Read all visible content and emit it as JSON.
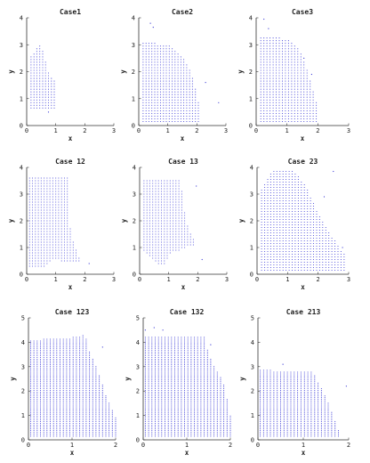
{
  "figure": {
    "background": "#ffffff",
    "point_color": "#3b3bd6",
    "axis_color": "#333333"
  },
  "chart_data": [
    {
      "type": "scatter",
      "title": "Case1",
      "xlabel": "x",
      "ylabel": "y",
      "xlim": [
        0,
        3
      ],
      "ylim": [
        0,
        4
      ],
      "xticks": [
        0,
        1,
        2,
        3
      ],
      "yticks": [
        0,
        1,
        2,
        3,
        4
      ],
      "grid": false,
      "x_range": [
        0.15,
        1.0
      ],
      "y_range": [
        0.65,
        3.0
      ],
      "spacing": 0.1,
      "upper_edge": [
        [
          0.15,
          2.6
        ],
        [
          0.3,
          2.8
        ],
        [
          0.45,
          3.0
        ],
        [
          0.6,
          2.7
        ],
        [
          0.7,
          2.1
        ],
        [
          0.8,
          1.9
        ],
        [
          1.0,
          1.6
        ]
      ],
      "outliers": [
        [
          0.75,
          0.5
        ]
      ]
    },
    {
      "type": "scatter",
      "title": "Case2",
      "xlabel": "x",
      "ylabel": "y",
      "xlim": [
        0,
        3
      ],
      "ylim": [
        0,
        4
      ],
      "xticks": [
        0,
        1,
        2,
        3
      ],
      "yticks": [
        0,
        1,
        2,
        3,
        4
      ],
      "grid": false,
      "x_range": [
        0.15,
        2.1
      ],
      "y_range": [
        0.15,
        3.1
      ],
      "spacing": 0.1,
      "upper_edge": [
        [
          0.15,
          3.1
        ],
        [
          1.0,
          3.0
        ],
        [
          1.5,
          2.6
        ],
        [
          1.8,
          2.0
        ],
        [
          2.0,
          1.2
        ],
        [
          2.1,
          0.5
        ]
      ],
      "outliers": [
        [
          0.4,
          3.8
        ],
        [
          0.5,
          3.65
        ],
        [
          2.3,
          1.6
        ],
        [
          2.75,
          0.85
        ]
      ]
    },
    {
      "type": "scatter",
      "title": "Case3",
      "xlabel": "x",
      "ylabel": "y",
      "xlim": [
        0,
        3
      ],
      "ylim": [
        0,
        4
      ],
      "xticks": [
        0,
        1,
        2,
        3
      ],
      "yticks": [
        0,
        1,
        2,
        3,
        4
      ],
      "grid": false,
      "x_range": [
        0.15,
        2.0
      ],
      "y_range": [
        0.15,
        3.3
      ],
      "spacing": 0.1,
      "upper_edge": [
        [
          0.15,
          3.3
        ],
        [
          0.6,
          3.3
        ],
        [
          1.0,
          3.2
        ],
        [
          1.3,
          3.0
        ],
        [
          1.6,
          2.3
        ],
        [
          1.8,
          1.5
        ],
        [
          2.0,
          0.7
        ]
      ],
      "outliers": [
        [
          0.25,
          3.95
        ],
        [
          0.4,
          3.6
        ],
        [
          1.55,
          2.5
        ],
        [
          1.8,
          1.9
        ]
      ]
    },
    {
      "type": "scatter",
      "title": "Case 12",
      "xlabel": "x",
      "ylabel": "y",
      "xlim": [
        0,
        3
      ],
      "ylim": [
        0,
        4
      ],
      "xticks": [
        0,
        1,
        2,
        3
      ],
      "yticks": [
        0,
        1,
        2,
        3,
        4
      ],
      "grid": false,
      "x_range": [
        0.1,
        1.8
      ],
      "y_range": [
        0.3,
        3.6
      ],
      "spacing": 0.1,
      "upper_edge": [
        [
          0.1,
          3.6
        ],
        [
          1.4,
          3.6
        ],
        [
          1.45,
          2.6
        ],
        [
          1.5,
          1.7
        ],
        [
          1.6,
          1.2
        ],
        [
          1.8,
          0.6
        ]
      ],
      "lower_edge": [
        [
          0.1,
          0.3
        ],
        [
          0.6,
          0.3
        ],
        [
          0.9,
          0.6
        ],
        [
          1.2,
          0.5
        ],
        [
          1.8,
          0.5
        ]
      ],
      "outliers": [
        [
          2.15,
          0.4
        ]
      ]
    },
    {
      "type": "scatter",
      "title": "Case 13",
      "xlabel": "x",
      "ylabel": "y",
      "xlim": [
        0,
        3
      ],
      "ylim": [
        0,
        4
      ],
      "xticks": [
        0,
        1,
        2,
        3
      ],
      "yticks": [
        0,
        1,
        2,
        3,
        4
      ],
      "grid": false,
      "x_range": [
        0.15,
        1.9
      ],
      "y_range": [
        0.3,
        3.6
      ],
      "spacing": 0.1,
      "upper_edge": [
        [
          0.15,
          3.5
        ],
        [
          1.4,
          3.6
        ],
        [
          1.5,
          2.6
        ],
        [
          1.7,
          1.6
        ],
        [
          1.9,
          1.2
        ]
      ],
      "lower_edge": [
        [
          0.15,
          0.9
        ],
        [
          0.5,
          0.5
        ],
        [
          0.8,
          0.3
        ],
        [
          1.1,
          0.8
        ],
        [
          1.9,
          1.1
        ]
      ],
      "outliers": [
        [
          2.15,
          0.55
        ],
        [
          1.95,
          3.3
        ]
      ]
    },
    {
      "type": "scatter",
      "title": "Case 23",
      "xlabel": "x",
      "ylabel": "y",
      "xlim": [
        0,
        3
      ],
      "ylim": [
        0,
        4
      ],
      "xticks": [
        0,
        1,
        2,
        3
      ],
      "yticks": [
        0,
        1,
        2,
        3,
        4
      ],
      "grid": false,
      "x_range": [
        0.15,
        2.9
      ],
      "y_range": [
        0.15,
        3.9
      ],
      "spacing": 0.1,
      "upper_edge": [
        [
          0.15,
          3.2
        ],
        [
          0.5,
          3.9
        ],
        [
          1.2,
          3.9
        ],
        [
          1.6,
          3.3
        ],
        [
          2.0,
          2.3
        ],
        [
          2.4,
          1.5
        ],
        [
          2.9,
          0.7
        ]
      ],
      "outliers": [
        [
          2.5,
          3.85
        ],
        [
          2.2,
          2.9
        ],
        [
          2.8,
          1.0
        ]
      ]
    },
    {
      "type": "scatter",
      "title": "Case 123",
      "xlabel": "x",
      "ylabel": "y",
      "xlim": [
        0,
        2
      ],
      "ylim": [
        0,
        5
      ],
      "xticks": [
        0,
        1,
        2
      ],
      "yticks": [
        0,
        1,
        2,
        3,
        4,
        5
      ],
      "grid": false,
      "x_range": [
        0.05,
        2.0
      ],
      "y_range": [
        0.15,
        4.3
      ],
      "spacing": 0.075,
      "upper_edge": [
        [
          0.05,
          4.1
        ],
        [
          1.0,
          4.2
        ],
        [
          1.3,
          4.3
        ],
        [
          1.4,
          3.6
        ],
        [
          1.6,
          2.8
        ],
        [
          1.8,
          1.7
        ],
        [
          2.0,
          0.9
        ]
      ],
      "outliers": [
        [
          1.7,
          3.8
        ]
      ]
    },
    {
      "type": "scatter",
      "title": "Case 132",
      "xlabel": "x",
      "ylabel": "y",
      "xlim": [
        0,
        2
      ],
      "ylim": [
        0,
        5
      ],
      "xticks": [
        0,
        1,
        2
      ],
      "yticks": [
        0,
        1,
        2,
        3,
        4,
        5
      ],
      "grid": false,
      "x_range": [
        0.05,
        2.0
      ],
      "y_range": [
        0.15,
        4.2
      ],
      "spacing": 0.075,
      "upper_edge": [
        [
          0.05,
          4.2
        ],
        [
          1.4,
          4.2
        ],
        [
          1.5,
          3.5
        ],
        [
          1.7,
          2.8
        ],
        [
          1.85,
          2.3
        ],
        [
          2.0,
          1.0
        ]
      ],
      "outliers": [
        [
          0.05,
          4.5
        ],
        [
          0.25,
          4.6
        ],
        [
          0.45,
          4.5
        ],
        [
          1.55,
          3.9
        ]
      ]
    },
    {
      "type": "scatter",
      "title": "Case 213",
      "xlabel": "x",
      "ylabel": "y",
      "xlim": [
        0,
        2
      ],
      "ylim": [
        0,
        5
      ],
      "xticks": [
        0,
        1,
        2
      ],
      "yticks": [
        0,
        1,
        2,
        3,
        4,
        5
      ],
      "grid": false,
      "x_range": [
        0.05,
        1.8
      ],
      "y_range": [
        0.15,
        2.9
      ],
      "spacing": 0.075,
      "upper_edge": [
        [
          0.05,
          2.9
        ],
        [
          0.5,
          2.8
        ],
        [
          1.2,
          2.8
        ],
        [
          1.4,
          2.1
        ],
        [
          1.6,
          1.3
        ],
        [
          1.8,
          0.3
        ]
      ],
      "outliers": [
        [
          0.55,
          3.1
        ],
        [
          1.95,
          2.2
        ]
      ]
    }
  ]
}
